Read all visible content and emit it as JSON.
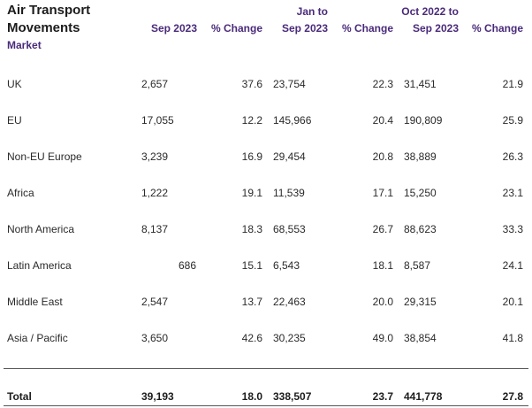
{
  "title": {
    "line1": "Air Transport",
    "line2": "Movements"
  },
  "market_label": "Market",
  "headers": {
    "sep2023": "Sep 2023",
    "pct1": "% Change",
    "jan_line1": "Jan to",
    "jan_line2": "Sep 2023",
    "pct2": "% Change",
    "oct_line1": "Oct 2022 to",
    "oct_line2": "Sep 2023",
    "pct3": "% Change"
  },
  "rows": [
    {
      "market": "UK",
      "sep": "2,657",
      "pct1": "37.6",
      "jan": "23,754",
      "pct2": "22.3",
      "oct": "31,451",
      "pct3": "21.9"
    },
    {
      "market": "EU",
      "sep": "17,055",
      "pct1": "12.2",
      "jan": "145,966",
      "pct2": "20.4",
      "oct": "190,809",
      "pct3": "25.9"
    },
    {
      "market": "Non-EU Europe",
      "sep": "3,239",
      "pct1": "16.9",
      "jan": "29,454",
      "pct2": "20.8",
      "oct": "38,889",
      "pct3": "26.3"
    },
    {
      "market": "Africa",
      "sep": "1,222",
      "pct1": "19.1",
      "jan": "11,539",
      "pct2": "17.1",
      "oct": "15,250",
      "pct3": "23.1"
    },
    {
      "market": "North America",
      "sep": "8,137",
      "pct1": "18.3",
      "jan": "68,553",
      "pct2": "26.7",
      "oct": "88,623",
      "pct3": "33.3"
    },
    {
      "market": "Latin America",
      "sep": "686",
      "pct1": "15.1",
      "jan": "6,543",
      "pct2": "18.1",
      "oct": "8,587",
      "pct3": "24.1"
    },
    {
      "market": "Middle East",
      "sep": "2,547",
      "pct1": "13.7",
      "jan": "22,463",
      "pct2": "20.0",
      "oct": "29,315",
      "pct3": "20.1"
    },
    {
      "market": "Asia / Pacific",
      "sep": "3,650",
      "pct1": "42.6",
      "jan": "30,235",
      "pct2": "49.0",
      "oct": "38,854",
      "pct3": "41.8"
    }
  ],
  "total": {
    "market": "Total",
    "sep": "39,193",
    "pct1": "18.0",
    "jan": "338,507",
    "pct2": "23.7",
    "oct": "441,778",
    "pct3": "27.8"
  },
  "colors": {
    "header_text": "#4a2b7a",
    "body_text": "#2a2a2a",
    "divider": "#555555"
  }
}
